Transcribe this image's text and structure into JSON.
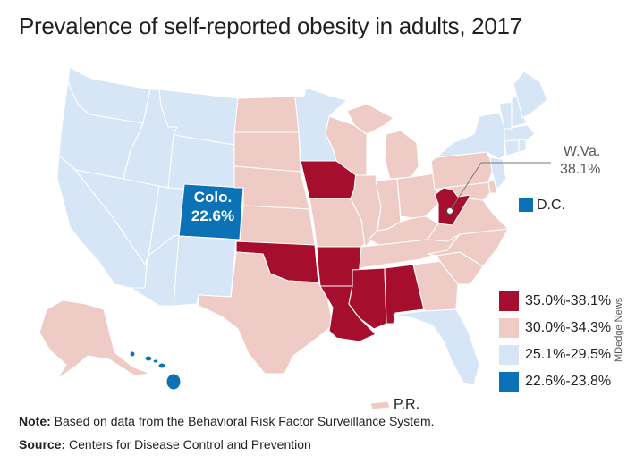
{
  "title": "Prevalence of self-reported obesity in adults, 2017",
  "colors": {
    "high": "#a50f2d",
    "mid": "#efcbc6",
    "low": "#d6e6f6",
    "lowest": "#0a72b5",
    "border": "#ffffff",
    "leader": "#777777"
  },
  "callouts": {
    "colorado_name": "Colo.",
    "colorado_value": "22.6%",
    "wva_name": "W.Va.",
    "wva_value": "38.1%",
    "dc_label": "D.C.",
    "pr_label": "P.R."
  },
  "legend": [
    {
      "label": "35.0%-38.1%",
      "color": "#a50f2d"
    },
    {
      "label": "30.0%-34.3%",
      "color": "#efcbc6"
    },
    {
      "label": "25.1%-29.5%",
      "color": "#d6e6f6"
    },
    {
      "label": "22.6%-23.8%",
      "color": "#0a72b5"
    }
  ],
  "state_classes": {
    "WA": "low",
    "OR": "low",
    "CA": "low",
    "NV": "low",
    "ID": "low",
    "MT": "low",
    "WY": "low",
    "UT": "low",
    "AZ": "low",
    "CO": "lowest",
    "NM": "low",
    "ND": "mid",
    "SD": "mid",
    "NE": "mid",
    "KS": "mid",
    "OK": "high",
    "TX": "mid",
    "MN": "low",
    "IA": "high",
    "MO": "mid",
    "AR": "high",
    "LA": "high",
    "WI": "mid",
    "IL": "mid",
    "MS": "high",
    "MI": "mid",
    "IN": "mid",
    "OH": "mid",
    "KY": "mid",
    "TN": "mid",
    "AL": "high",
    "GA": "mid",
    "FL": "low",
    "SC": "mid",
    "NC": "mid",
    "VA": "mid",
    "WV": "high",
    "PA": "mid",
    "NY": "low",
    "ME": "low",
    "NH": "low",
    "VT": "low",
    "MA": "low",
    "CT": "low",
    "RI": "low",
    "NJ": "low",
    "DE": "mid",
    "MD": "mid",
    "AK": "mid",
    "HI": "lowest",
    "PR": "mid"
  },
  "note_label": "Note:",
  "note_text": " Based on data from the Behavioral Risk Factor Surveillance System.",
  "source_label": "Source:",
  "source_text": " Centers for Disease Control and Prevention",
  "credit": "MDedge News"
}
